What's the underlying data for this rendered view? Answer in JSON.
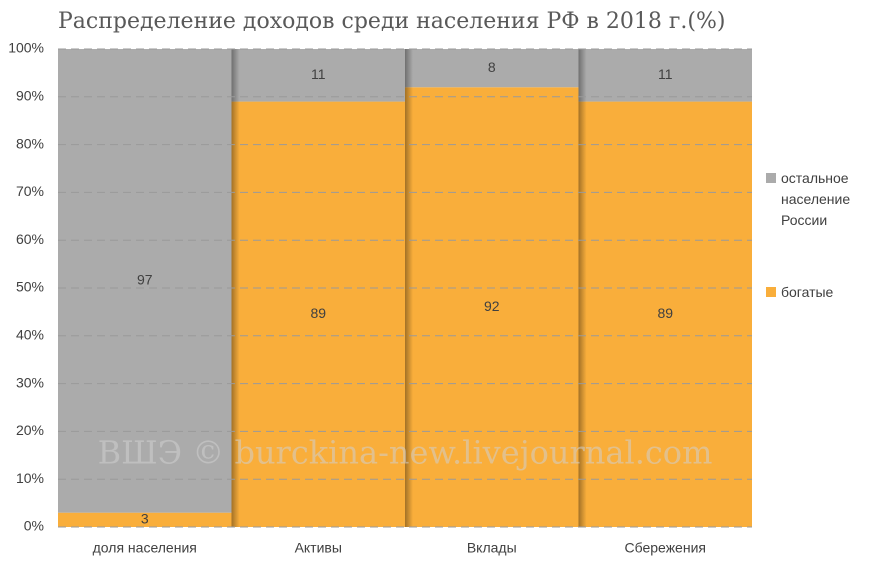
{
  "chart_data": {
    "type": "stacked_bar",
    "title": "Распределение доходов среди населения РФ в 2018 г.(%)",
    "annotation": "ВШЭ © burckina-new.livejournal.com",
    "categories": [
      "доля населения",
      "Активы",
      "Вклады",
      "Сбережения"
    ],
    "series": [
      {
        "name": "богатые",
        "color": "#f9ae3b",
        "values": [
          3,
          89,
          92,
          89
        ]
      },
      {
        "name": "остальное население России",
        "color": "#ababab",
        "values": [
          97,
          11,
          8,
          11
        ]
      }
    ],
    "ylim": [
      0,
      100
    ],
    "yticks": [
      {
        "value": 0,
        "label": "0%"
      },
      {
        "value": 10,
        "label": "10%"
      },
      {
        "value": 20,
        "label": "20%"
      },
      {
        "value": 30,
        "label": "30%"
      },
      {
        "value": 40,
        "label": "40%"
      },
      {
        "value": 50,
        "label": "50%"
      },
      {
        "value": 60,
        "label": "60%"
      },
      {
        "value": 70,
        "label": "70%"
      },
      {
        "value": 80,
        "label": "80%"
      },
      {
        "value": 90,
        "label": "90%"
      },
      {
        "value": 100,
        "label": "100%"
      }
    ],
    "grid": true,
    "legend": "right"
  }
}
